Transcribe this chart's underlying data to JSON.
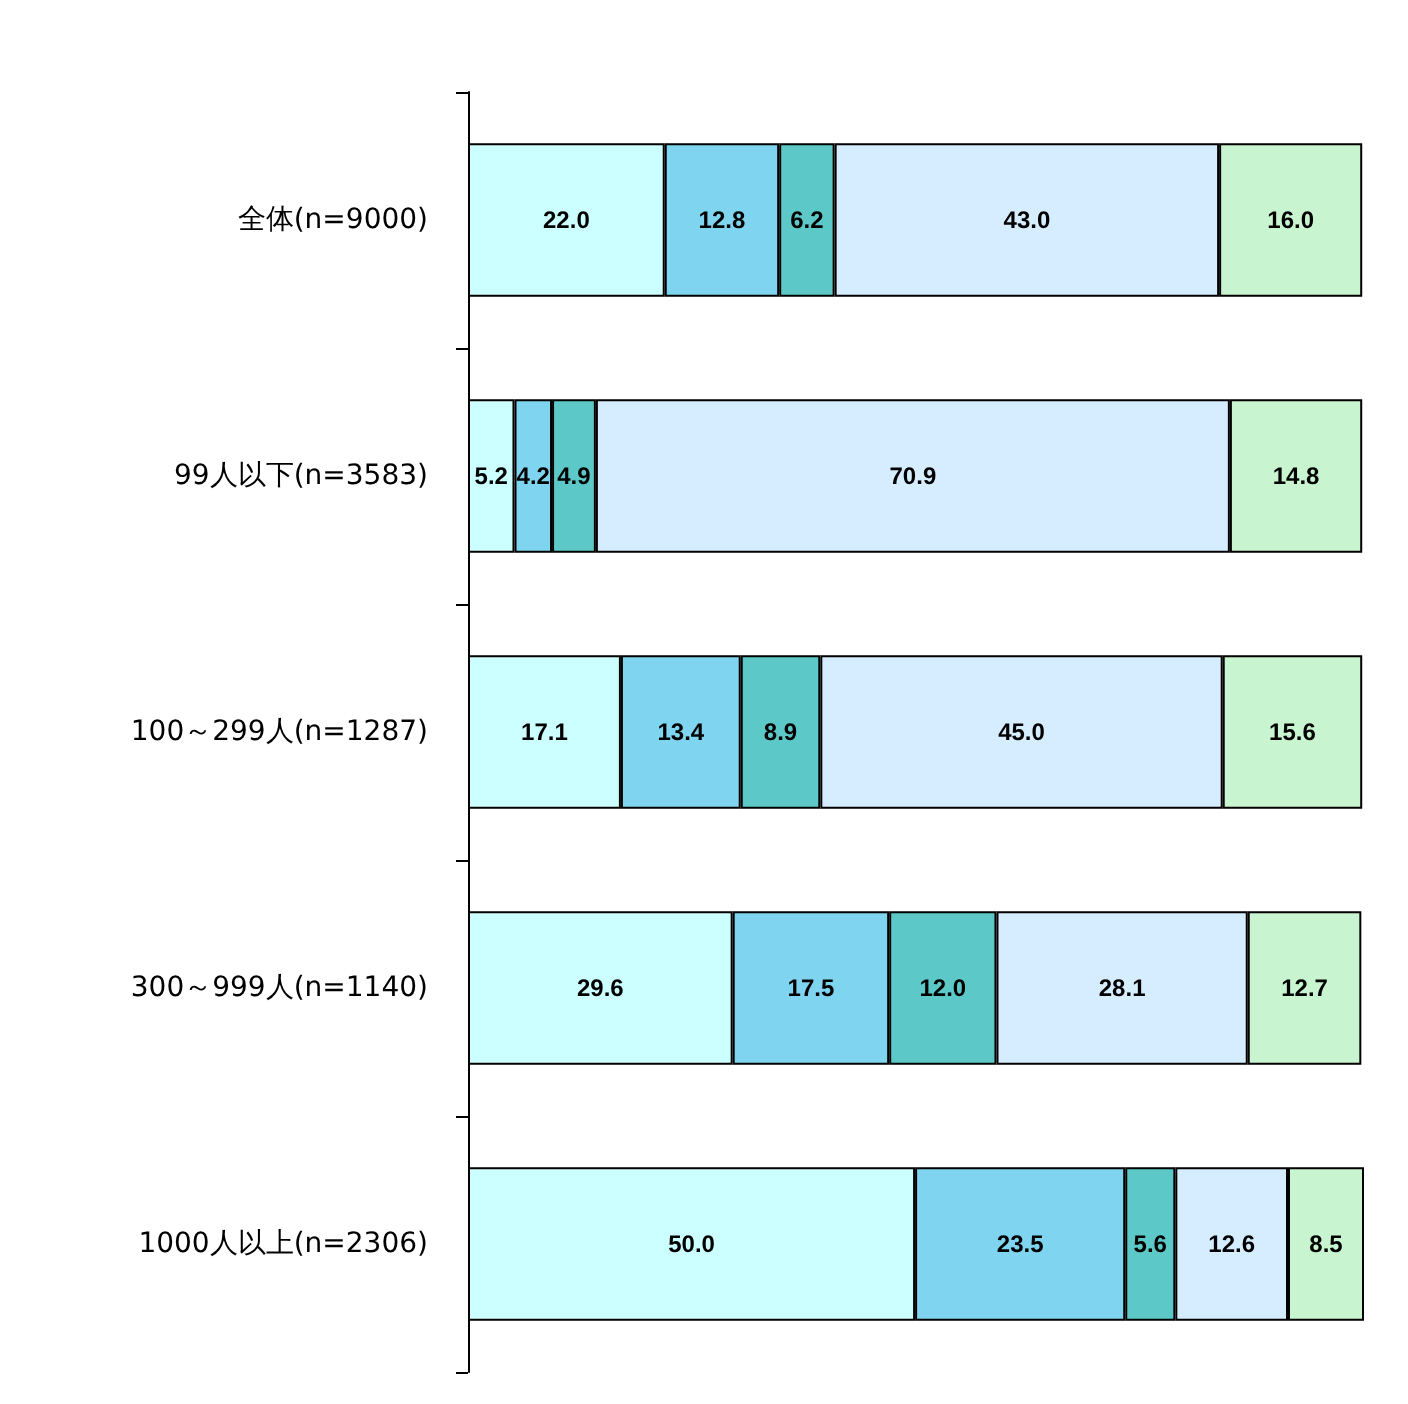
{
  "chart_data": {
    "type": "bar",
    "orientation": "horizontal",
    "stacked": true,
    "categories": [
      "全体(n=9000)",
      "99人以下(n=3583)",
      "100～299人(n=1287)",
      "300～999人(n=1140)",
      "1000人以上(n=2306)"
    ],
    "series": [
      {
        "color": "#ccffff",
        "values": [
          22.0,
          5.2,
          17.1,
          29.6,
          50.0
        ],
        "value_labels": [
          "22.0",
          "5.2",
          "17.1",
          "29.6",
          "50.0"
        ]
      },
      {
        "color": "#7fd4f0",
        "values": [
          12.8,
          4.2,
          13.4,
          17.5,
          23.5
        ],
        "value_labels": [
          "12.8",
          "4.2",
          "13.4",
          "17.5",
          "23.5"
        ]
      },
      {
        "color": "#5cc8c8",
        "values": [
          6.2,
          4.9,
          8.9,
          12.0,
          5.6
        ],
        "value_labels": [
          "6.2",
          "4.9",
          "8.9",
          "12.0",
          "5.6"
        ]
      },
      {
        "color": "#d6ecff",
        "values": [
          43.0,
          70.9,
          45.0,
          28.1,
          12.6
        ],
        "value_labels": [
          "43.0",
          "70.9",
          "45.0",
          "28.1",
          "12.6"
        ]
      },
      {
        "color": "#c8f5d0",
        "values": [
          16.0,
          14.8,
          15.6,
          12.7,
          8.5
        ],
        "value_labels": [
          "16.0",
          "14.8",
          "15.6",
          "12.7",
          "8.5"
        ]
      }
    ]
  }
}
